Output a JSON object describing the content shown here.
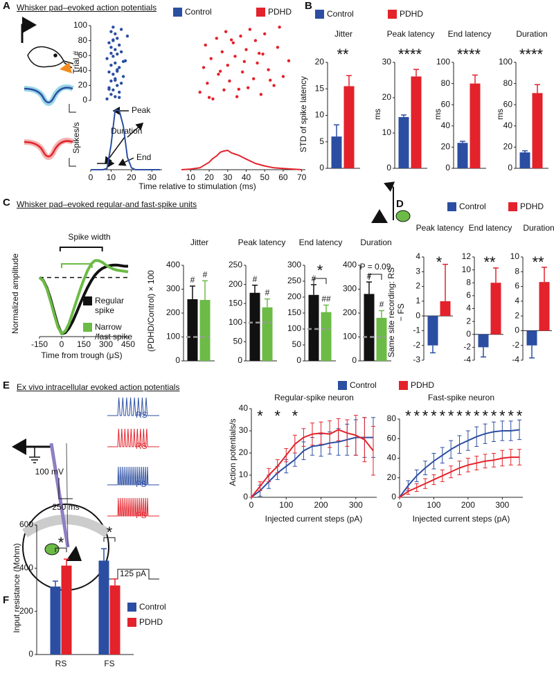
{
  "panels": [
    {
      "letter": "A",
      "heading": "Whisker pad–evoked action potentials"
    },
    {
      "letter": "B"
    },
    {
      "letter": "C",
      "heading": "Whisker pad–evoked regular-and fast-spike units"
    },
    {
      "letter": "D"
    },
    {
      "letter": "E",
      "heading": "Ex vivo intracellular evoked action potentials"
    },
    {
      "letter": "F"
    }
  ],
  "schematic": {
    "traces": [
      "RS",
      "RS",
      "FS",
      "FS"
    ],
    "voltage_scale": "100 mV",
    "time_scale": "250 ms",
    "current_step": "125 pA"
  },
  "chart_data": [
    {
      "type": "scatter",
      "ylabel": "Trial #",
      "xlim": [
        0,
        35
      ],
      "ylim": [
        0,
        100
      ],
      "yticks": [
        0,
        20,
        40,
        60,
        80,
        100
      ],
      "series": [
        {
          "name": "Control",
          "color": "#2b4ea2",
          "x": [
            8,
            12,
            10,
            14,
            11,
            9,
            13,
            15,
            10,
            12,
            16,
            11,
            9,
            13,
            14,
            10,
            12,
            17,
            8,
            11,
            13,
            15,
            12,
            10,
            14,
            9,
            11,
            13,
            18,
            12,
            10,
            15,
            11,
            14,
            9,
            12,
            13,
            16,
            10,
            11
          ],
          "y": [
            2,
            5,
            8,
            11,
            14,
            17,
            20,
            23,
            26,
            29,
            32,
            35,
            38,
            41,
            44,
            47,
            50,
            53,
            56,
            59,
            62,
            65,
            68,
            71,
            74,
            77,
            80,
            83,
            86,
            89,
            92,
            95,
            98,
            4,
            15,
            27,
            39,
            52,
            63,
            81
          ]
        }
      ]
    },
    {
      "type": "scatter",
      "xlim": [
        5,
        72
      ],
      "ylim": [
        0,
        100
      ],
      "series": [
        {
          "name": "PDHD",
          "color": "#e3222b",
          "x": [
            22,
            35,
            48,
            15,
            28,
            41,
            55,
            19,
            31,
            44,
            60,
            25,
            38,
            52,
            17,
            30,
            46,
            63,
            21,
            34,
            49,
            27,
            40,
            57,
            18,
            33,
            45,
            24,
            37,
            50,
            29,
            42,
            58,
            20,
            36,
            53,
            26,
            39,
            47,
            32
          ],
          "y": [
            2,
            5,
            8,
            11,
            14,
            17,
            20,
            23,
            26,
            29,
            32,
            35,
            38,
            41,
            44,
            47,
            50,
            53,
            56,
            59,
            62,
            65,
            68,
            71,
            74,
            77,
            80,
            83,
            86,
            89,
            92,
            95,
            98,
            4,
            15,
            27,
            39,
            52,
            63,
            81
          ]
        }
      ]
    },
    {
      "type": "line",
      "ylabel": "Spikes/s",
      "xlabel": "Time relative to stimulation (ms)",
      "annotations": [
        "Peak",
        "Duration",
        "End"
      ],
      "x": [
        0,
        2,
        4,
        6,
        8,
        10,
        12,
        14,
        16,
        18,
        20,
        22,
        24,
        26,
        28,
        30,
        32,
        34
      ],
      "xlim": [
        0,
        35
      ],
      "ylim": [
        0,
        100
      ],
      "xticks": [
        0,
        10,
        20,
        30
      ],
      "series": [
        {
          "color": "#2b4ea2",
          "values": [
            0,
            0,
            0,
            0,
            2,
            40,
            96,
            95,
            70,
            20,
            3,
            0,
            0,
            0,
            0,
            0,
            0,
            0
          ]
        }
      ]
    },
    {
      "type": "line",
      "x": [
        5,
        10,
        15,
        20,
        22,
        24,
        26,
        28,
        30,
        32,
        34,
        36,
        38,
        40,
        45,
        50,
        55,
        60,
        65,
        70
      ],
      "xlim": [
        5,
        72
      ],
      "ylim": [
        0,
        100
      ],
      "xticks": [
        10,
        20,
        30,
        40,
        50,
        60,
        70
      ],
      "series": [
        {
          "color": "#e3222b",
          "values": [
            0,
            1,
            3,
            12,
            18,
            22,
            28,
            30,
            31,
            27,
            25,
            23,
            20,
            17,
            10,
            6,
            3,
            2,
            1,
            0
          ]
        }
      ]
    },
    {
      "type": "bar",
      "title": "Jitter",
      "annotation": "**",
      "ylabel": "STD of spike latency",
      "ylim": [
        0,
        20
      ],
      "yticks": [
        0,
        5,
        10,
        15,
        20
      ],
      "series": [
        {
          "name": "Control",
          "color": "#2b4ea2",
          "values": [
            6
          ],
          "errors": [
            2.2
          ]
        },
        {
          "name": "PDHD",
          "color": "#e3222b",
          "values": [
            15.5
          ],
          "errors": [
            2
          ]
        }
      ]
    },
    {
      "type": "bar",
      "title": "Peak latency",
      "annotation": "****",
      "ylabel": "ms",
      "ylim": [
        0,
        30
      ],
      "yticks": [
        0,
        10,
        20,
        30
      ],
      "series": [
        {
          "color": "#2b4ea2",
          "values": [
            14.5
          ],
          "errors": [
            0.6
          ]
        },
        {
          "color": "#e3222b",
          "values": [
            26
          ],
          "errors": [
            2
          ]
        }
      ]
    },
    {
      "type": "bar",
      "title": "End latency",
      "annotation": "****",
      "ylabel": "ms",
      "ylim": [
        0,
        100
      ],
      "yticks": [
        0,
        20,
        40,
        60,
        80,
        100
      ],
      "series": [
        {
          "color": "#2b4ea2",
          "values": [
            24
          ],
          "errors": [
            1.5
          ]
        },
        {
          "color": "#e3222b",
          "values": [
            80
          ],
          "errors": [
            8
          ]
        }
      ]
    },
    {
      "type": "bar",
      "title": "Duration",
      "annotation": "****",
      "ylabel": "ms",
      "ylim": [
        0,
        100
      ],
      "yticks": [
        0,
        20,
        40,
        60,
        80,
        100
      ],
      "series": [
        {
          "color": "#2b4ea2",
          "values": [
            15
          ],
          "errors": [
            1.5
          ]
        },
        {
          "color": "#e3222b",
          "values": [
            71
          ],
          "errors": [
            8
          ]
        }
      ]
    },
    {
      "type": "line",
      "ylabel": "Normalized amplitude",
      "xlabel": "Time from trough (μS)",
      "reference": 0,
      "spike_width": {
        "label": "Spike width",
        "ranges": [
          [
            -10,
            275
          ],
          [
            0,
            205
          ]
        ]
      },
      "x": [
        -150,
        -125,
        -100,
        -75,
        -50,
        -25,
        0,
        25,
        50,
        75,
        100,
        125,
        150,
        175,
        200,
        225,
        250,
        275,
        300,
        325,
        350,
        375,
        400,
        425,
        450
      ],
      "xlim": [
        -150,
        450
      ],
      "ylim": [
        -1.05,
        0.45
      ],
      "xticks": [
        -150,
        0,
        150,
        300,
        450
      ],
      "series": [
        {
          "name": "Regular spike",
          "color": "#111111",
          "values": [
            0,
            -0.05,
            -0.18,
            -0.38,
            -0.62,
            -0.85,
            -1,
            -0.98,
            -0.9,
            -0.78,
            -0.63,
            -0.47,
            -0.32,
            -0.18,
            -0.06,
            0.04,
            0.11,
            0.16,
            0.19,
            0.21,
            0.22,
            0.22,
            0.21,
            0.2,
            0.2
          ]
        },
        {
          "name": "Narrow /fast spike",
          "color": "#6cbb46",
          "values": [
            0,
            -0.06,
            -0.2,
            -0.42,
            -0.66,
            -0.88,
            -1,
            -0.95,
            -0.82,
            -0.62,
            -0.42,
            -0.22,
            -0.04,
            0.12,
            0.24,
            0.3,
            0.3,
            0.27,
            0.22,
            0.18,
            0.15,
            0.13,
            0.12,
            0.11,
            0.1
          ]
        }
      ]
    },
    {
      "type": "bar",
      "title": "Jitter",
      "ylabel": "(PDHD/Control) × 100",
      "reference": 100,
      "ylim": [
        0,
        400
      ],
      "yticks": [
        0,
        100,
        200,
        300,
        400
      ],
      "series": [
        {
          "color": "#111111",
          "values": [
            258
          ],
          "errors": [
            55
          ],
          "markers": [
            "#"
          ]
        },
        {
          "color": "#6cbb46",
          "values": [
            255
          ],
          "errors": [
            80
          ],
          "markers": [
            "#"
          ]
        }
      ]
    },
    {
      "type": "bar",
      "title": "Peak latency",
      "reference": 100,
      "ylim": [
        0,
        250
      ],
      "yticks": [
        0,
        50,
        100,
        150,
        200,
        250
      ],
      "series": [
        {
          "color": "#111111",
          "values": [
            178
          ],
          "errors": [
            20
          ],
          "markers": [
            "#"
          ]
        },
        {
          "color": "#6cbb46",
          "values": [
            140
          ],
          "errors": [
            22
          ],
          "markers": [
            "#"
          ]
        }
      ]
    },
    {
      "type": "bar",
      "title": "End latency",
      "annotation": "*",
      "reference": 100,
      "ylim": [
        0,
        300
      ],
      "yticks": [
        0,
        50,
        100,
        150,
        200,
        250,
        300
      ],
      "series": [
        {
          "color": "#111111",
          "values": [
            207
          ],
          "errors": [
            32
          ],
          "markers": [
            "#"
          ]
        },
        {
          "color": "#6cbb46",
          "values": [
            153
          ],
          "errors": [
            22
          ],
          "markers": [
            "##"
          ]
        }
      ]
    },
    {
      "type": "bar",
      "title": "Duration",
      "annotation": "P = 0.09",
      "reference": 100,
      "ylim": [
        0,
        400
      ],
      "yticks": [
        0,
        100,
        200,
        300,
        400
      ],
      "series": [
        {
          "color": "#111111",
          "values": [
            280
          ],
          "errors": [
            50
          ],
          "markers": [
            "#"
          ]
        },
        {
          "color": "#6cbb46",
          "values": [
            180
          ],
          "errors": [
            30
          ],
          "markers": [
            "#"
          ]
        }
      ]
    },
    {
      "type": "bar",
      "title": "Peak latency",
      "annotation": "*",
      "ylabel": "Same site recording: RS − FS",
      "ylim": [
        -3,
        4
      ],
      "yticks": [
        -3,
        -2,
        -1,
        0,
        1,
        2,
        3,
        4
      ],
      "series": [
        {
          "name": "Control",
          "color": "#2b4ea2",
          "values": [
            -2
          ],
          "errors": [
            0.5
          ]
        },
        {
          "name": "PDHD",
          "color": "#e3222b",
          "values": [
            1
          ],
          "errors": [
            2.5
          ]
        }
      ]
    },
    {
      "type": "bar",
      "title": "End latency",
      "annotation": "**",
      "ylim": [
        -4,
        12
      ],
      "yticks": [
        -4,
        -2,
        0,
        2,
        4,
        6,
        8,
        10,
        12
      ],
      "series": [
        {
          "color": "#2b4ea2",
          "values": [
            -2
          ],
          "errors": [
            1.5
          ]
        },
        {
          "color": "#e3222b",
          "values": [
            8
          ],
          "errors": [
            2.3
          ]
        }
      ]
    },
    {
      "type": "bar",
      "title": "Duration",
      "annotation": "**",
      "ylim": [
        -4,
        10
      ],
      "yticks": [
        -4,
        -2,
        0,
        2,
        4,
        6,
        8,
        10
      ],
      "series": [
        {
          "color": "#2b4ea2",
          "values": [
            -2
          ],
          "errors": [
            1.7
          ]
        },
        {
          "color": "#e3222b",
          "values": [
            6.6
          ],
          "errors": [
            2
          ]
        }
      ]
    },
    {
      "type": "line",
      "title": "Regular-spike neuron",
      "ylabel": "Action potentials/s",
      "xlabel": "Injected current steps (pA)",
      "significance": {
        "label": "*",
        "x": [
          25,
          75,
          125
        ]
      },
      "x": [
        0,
        25,
        50,
        75,
        100,
        125,
        150,
        175,
        200,
        225,
        250,
        275,
        300,
        325,
        350
      ],
      "xlim": [
        0,
        360
      ],
      "ylim": [
        0,
        40
      ],
      "xticks": [
        0,
        100,
        200,
        300
      ],
      "yticks": [
        0,
        10,
        20,
        30,
        40
      ],
      "series": [
        {
          "name": "Control",
          "color": "#2b4ea2",
          "values": [
            0,
            3,
            7,
            11,
            14,
            17,
            21,
            23,
            23.5,
            24.5,
            25,
            26,
            27,
            27,
            27
          ],
          "errors": [
            0,
            2.5,
            3,
            3,
            3,
            3,
            4,
            4,
            5,
            5,
            6,
            7,
            8,
            9,
            9
          ]
        },
        {
          "name": "PDHD",
          "color": "#e3222b",
          "values": [
            0,
            5,
            10,
            14,
            19,
            24,
            27,
            28.5,
            29,
            28.5,
            30.5,
            29,
            28,
            26,
            21
          ],
          "errors": [
            0,
            2,
            3,
            3,
            3,
            4,
            4,
            5,
            5,
            6,
            5,
            6,
            9,
            10,
            11
          ]
        }
      ]
    },
    {
      "type": "line",
      "title": "Fast-spike neuron",
      "xlabel": "Injected current steps (pA)",
      "significance": {
        "label": "*",
        "x": [
          25,
          50,
          75,
          100,
          125,
          150,
          175,
          200,
          225,
          250,
          275,
          300,
          325,
          350
        ]
      },
      "x": [
        0,
        25,
        50,
        75,
        100,
        125,
        150,
        175,
        200,
        225,
        250,
        275,
        300,
        325,
        350
      ],
      "xlim": [
        0,
        360
      ],
      "ylim": [
        0,
        80
      ],
      "xticks": [
        0,
        100,
        200,
        300
      ],
      "yticks": [
        0,
        20,
        40,
        60,
        80
      ],
      "series": [
        {
          "color": "#2b4ea2",
          "values": [
            0,
            12,
            22,
            30,
            37,
            43,
            49,
            54,
            58,
            62,
            65,
            67,
            68,
            68,
            69
          ],
          "errors": [
            0,
            5,
            6,
            7,
            8,
            8,
            9,
            9,
            10,
            10,
            10,
            10,
            10,
            10,
            10
          ]
        },
        {
          "color": "#e3222b",
          "values": [
            0,
            6,
            10,
            14,
            18,
            22,
            26,
            30,
            33,
            35,
            37,
            38,
            40,
            41,
            41
          ],
          "errors": [
            0,
            3,
            4,
            5,
            5,
            6,
            6,
            7,
            7,
            7,
            7,
            7,
            8,
            8,
            8
          ]
        }
      ]
    },
    {
      "type": "bar",
      "ylabel": "Input resistance (Mohm)",
      "categories": [
        "RS",
        "FS"
      ],
      "annotations": [
        "*",
        "*"
      ],
      "ylim": [
        0,
        600
      ],
      "yticks": [
        0,
        200,
        400,
        600
      ],
      "series": [
        {
          "name": "Control",
          "color": "#2b4ea2",
          "values": [
            315,
            435
          ],
          "errors": [
            25,
            55
          ]
        },
        {
          "name": "PDHD",
          "color": "#e3222b",
          "values": [
            412,
            320
          ],
          "errors": [
            30,
            30
          ]
        }
      ]
    }
  ]
}
